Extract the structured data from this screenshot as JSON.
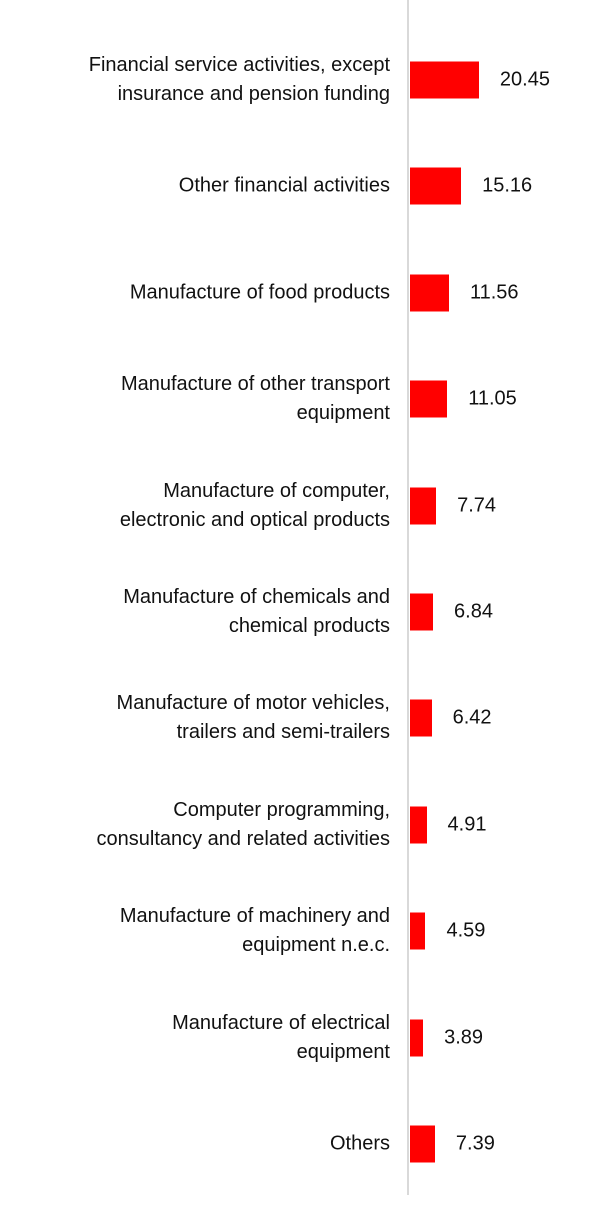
{
  "chart_data": {
    "type": "bar",
    "orientation": "horizontal",
    "title": "",
    "xlabel": "",
    "ylabel": "",
    "bar_color": "#ff0000",
    "axis_color": "#d9d9d9",
    "xlim": [
      0,
      22
    ],
    "grid": false,
    "categories": [
      "Financial service activities, except\ninsurance and pension funding",
      "Other financial activities",
      "Manufacture of food products",
      "Manufacture of other transport\nequipment",
      "Manufacture of computer,\nelectronic and optical products",
      "Manufacture of chemicals and\nchemical products",
      "Manufacture of motor vehicles,\ntrailers and semi-trailers",
      "Computer programming,\nconsultancy and related activities",
      "Manufacture of machinery and\nequipment n.e.c.",
      "Manufacture of electrical\nequipment",
      "Others"
    ],
    "values": [
      20.45,
      15.16,
      11.56,
      11.05,
      7.74,
      6.84,
      6.42,
      4.91,
      4.59,
      3.89,
      7.39
    ],
    "value_labels": [
      "20.45",
      "15.16",
      "11.56",
      "11.05",
      "7.74",
      "6.84",
      "6.42",
      "4.91",
      "4.59",
      "3.89",
      "7.39"
    ]
  }
}
